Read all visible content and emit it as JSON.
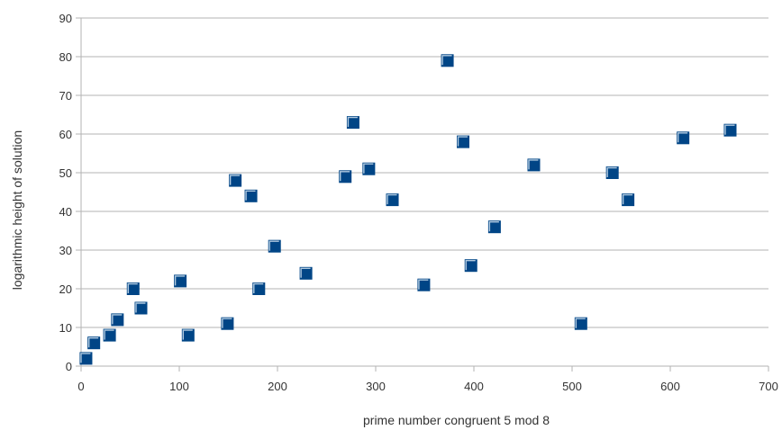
{
  "chart_data": {
    "type": "scatter",
    "title": "",
    "xlabel": "prime number congruent 5 mod 8",
    "ylabel": "logarithmic height of solution",
    "xlim": [
      0,
      700
    ],
    "ylim": [
      0,
      90
    ],
    "x_ticks": [
      "0",
      "100",
      "200",
      "300",
      "400",
      "500",
      "600",
      "700"
    ],
    "y_ticks": [
      "0",
      "10",
      "20",
      "30",
      "40",
      "50",
      "60",
      "70",
      "80",
      "90"
    ],
    "grid": "horizontal",
    "legend": "none",
    "marker": "square",
    "colors": {
      "marker": "#004586",
      "marker_highlight": "#cfe0f0",
      "gridline": "#b3b3b3",
      "text": "#333333"
    },
    "points": [
      {
        "x": 5,
        "y": 2
      },
      {
        "x": 13,
        "y": 6
      },
      {
        "x": 29,
        "y": 8
      },
      {
        "x": 37,
        "y": 12
      },
      {
        "x": 53,
        "y": 20
      },
      {
        "x": 61,
        "y": 15
      },
      {
        "x": 101,
        "y": 22
      },
      {
        "x": 109,
        "y": 8
      },
      {
        "x": 149,
        "y": 11
      },
      {
        "x": 157,
        "y": 48
      },
      {
        "x": 173,
        "y": 44
      },
      {
        "x": 181,
        "y": 20
      },
      {
        "x": 197,
        "y": 31
      },
      {
        "x": 229,
        "y": 24
      },
      {
        "x": 269,
        "y": 49
      },
      {
        "x": 277,
        "y": 63
      },
      {
        "x": 293,
        "y": 51
      },
      {
        "x": 317,
        "y": 43
      },
      {
        "x": 349,
        "y": 21
      },
      {
        "x": 373,
        "y": 79
      },
      {
        "x": 389,
        "y": 58
      },
      {
        "x": 397,
        "y": 26
      },
      {
        "x": 421,
        "y": 36
      },
      {
        "x": 461,
        "y": 52
      },
      {
        "x": 509,
        "y": 11
      },
      {
        "x": 541,
        "y": 50
      },
      {
        "x": 557,
        "y": 43
      },
      {
        "x": 613,
        "y": 59
      },
      {
        "x": 661,
        "y": 61
      }
    ]
  }
}
